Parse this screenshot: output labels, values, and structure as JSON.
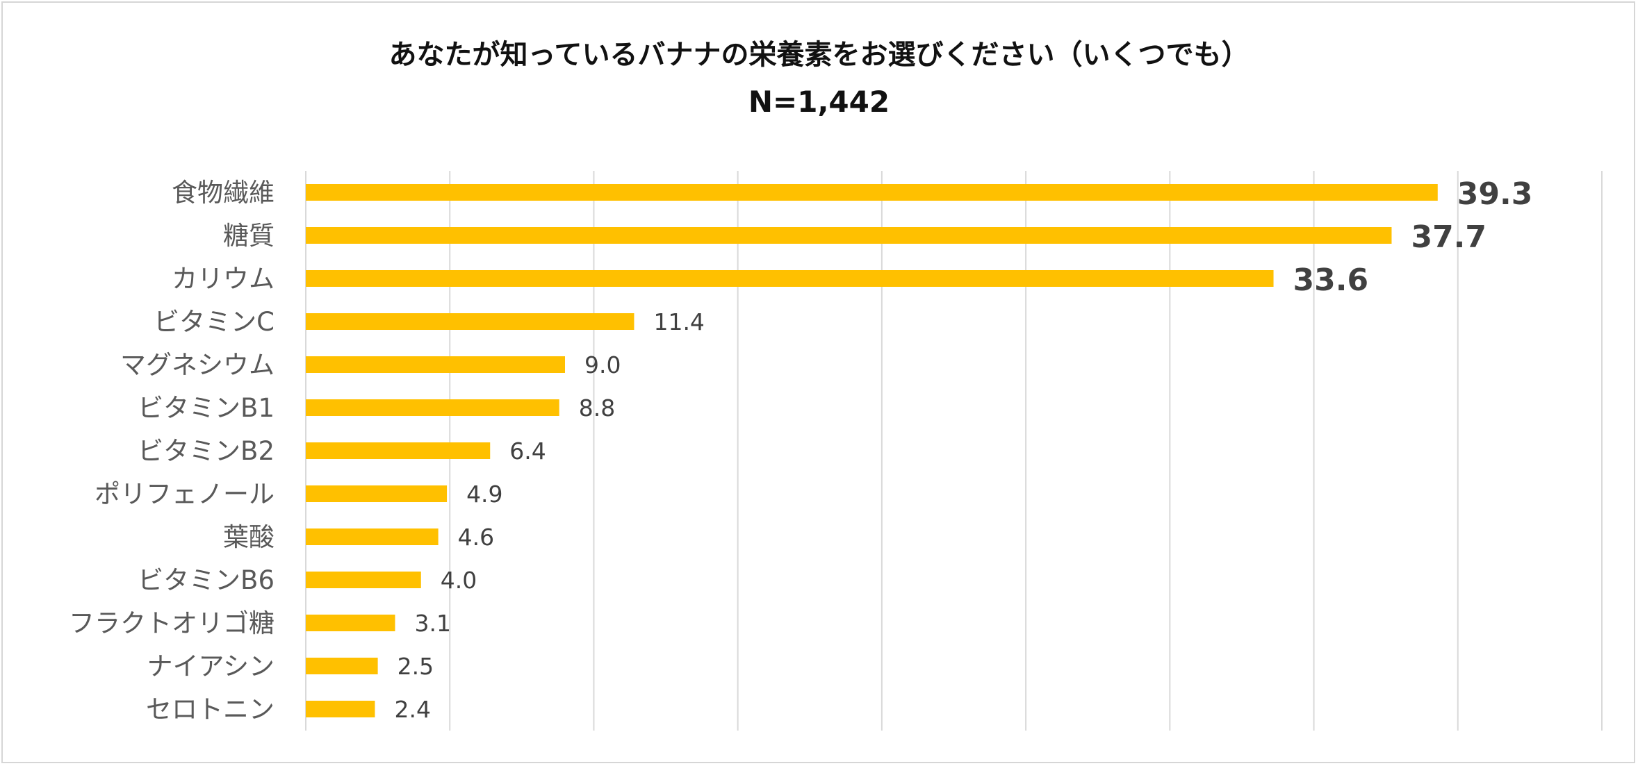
{
  "chart_data": {
    "type": "bar",
    "orientation": "horizontal",
    "title": "あなたが知っているバナナの栄養素をお選びください（いくつでも）",
    "subtitle": "N=1,442",
    "categories": [
      "食物繊維",
      "糖質",
      "カリウム",
      "ビタミンC",
      "マグネシウム",
      "ビタミンB1",
      "ビタミンB2",
      "ポリフェノール",
      "葉酸",
      "ビタミンB6",
      "フラクトオリゴ糖",
      "ナイアシン",
      "セロトニン"
    ],
    "values": [
      39.3,
      37.7,
      33.6,
      11.4,
      9.0,
      8.8,
      6.4,
      4.9,
      4.6,
      4.0,
      3.1,
      2.5,
      2.4
    ],
    "value_labels": [
      "39.3",
      "37.7",
      "33.6",
      "11.4",
      "9.0",
      "8.8",
      "6.4",
      "4.9",
      "4.6",
      "4.0",
      "3.1",
      "2.5",
      "2.4"
    ],
    "highlighted_labels": 3,
    "xlim": [
      0,
      45
    ],
    "x_gridline_step": 5,
    "grid": true,
    "legend": "none",
    "bar_color": "#FFC000"
  }
}
